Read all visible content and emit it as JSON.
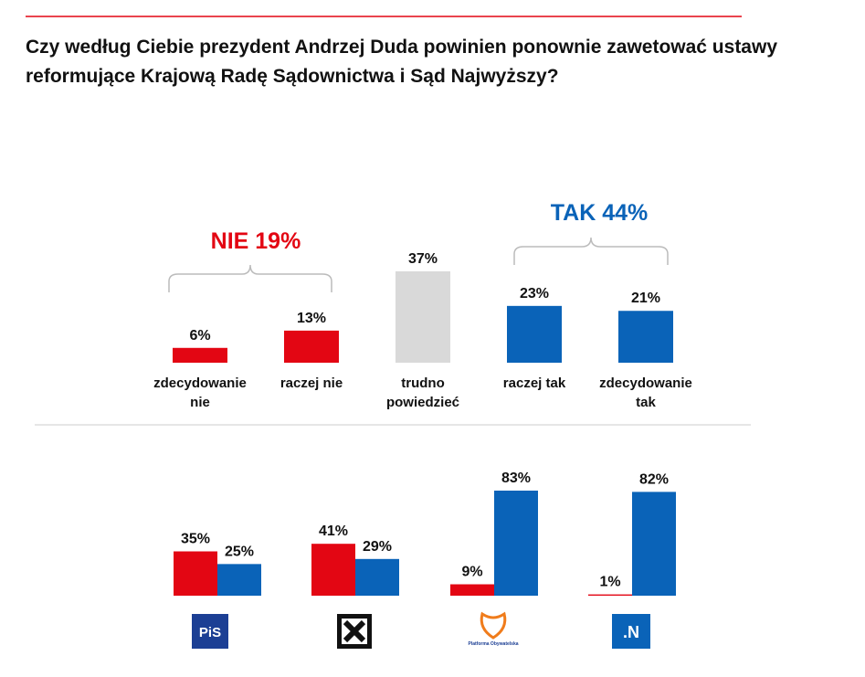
{
  "chart_data": [
    {
      "type": "bar",
      "title": "Czy według Ciebie prezydent Andrzej Duda powinien ponownie zawetować ustawy reformujące Krajową Radę Sądownictwa i Sąd Najwyższy?",
      "categories": [
        "zdecydowanie nie",
        "raczej nie",
        "trudno powiedzieć",
        "raczej tak",
        "zdecydowanie tak"
      ],
      "values": [
        6,
        13,
        37,
        23,
        21
      ],
      "value_labels": [
        "6%",
        "13%",
        "37%",
        "23%",
        "21%"
      ],
      "colors": [
        "#e30613",
        "#e30613",
        "#d9d9d9",
        "#0a63b8",
        "#0a63b8"
      ],
      "annotations": [
        "NIE 19%",
        "TAK 44%"
      ]
    },
    {
      "type": "grouped_bar",
      "categories": [
        "PiS",
        null,
        "Platforma Obywatelska",
        ".N"
      ],
      "series": [
        {
          "color": "#e30613",
          "values": [
            35,
            41,
            9,
            1
          ],
          "value_labels": [
            "35%",
            "41%",
            "9%",
            "1%"
          ]
        },
        {
          "color": "#0a63b8",
          "values": [
            25,
            29,
            83,
            82
          ],
          "value_labels": [
            "25%",
            "29%",
            "83%",
            "82%"
          ]
        }
      ]
    }
  ]
}
